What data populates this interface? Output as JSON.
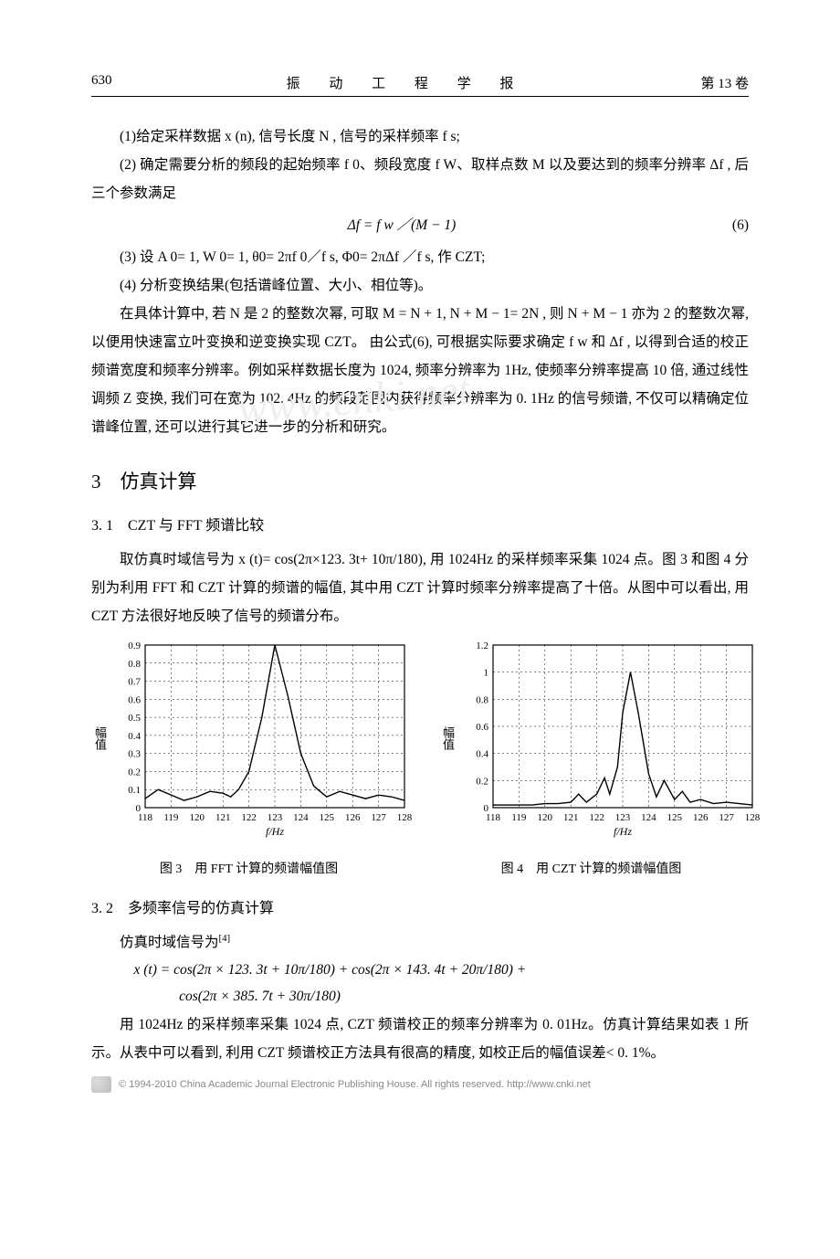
{
  "header": {
    "page_number": "630",
    "journal": "振 动 工 程 学 报",
    "volume": "第 13 卷"
  },
  "para1": "(1)给定采样数据 x (n), 信号长度 N , 信号的采样频率 f s;",
  "para2": "(2) 确定需要分析的频段的起始频率 f 0、频段宽度 f W、取样点数 M 以及要达到的频率分辨率 Δf , 后三个参数满足",
  "eq6": "Δf  =  f w ／(M  −  1)",
  "eq6_num": "(6)",
  "para3": "(3) 设 A 0= 1, W 0= 1, θ0= 2πf 0／f s, Φ0= 2πΔf ／f s, 作 CZT;",
  "para4": "(4) 分析变换结果(包括谱峰位置、大小、相位等)。",
  "para5": "在具体计算中, 若 N 是 2 的整数次幂, 可取 M = N + 1, N + M − 1= 2N , 则 N + M − 1 亦为 2 的整数次幂, 以便用快速富立叶变换和逆变换实现 CZT。 由公式(6), 可根据实际要求确定 f w 和 Δf , 以得到合适的校正频谱宽度和频率分辨率。例如采样数据长度为 1024, 频率分辨率为 1Hz, 使频率分辨率提高 10 倍, 通过线性调频 Z 变换, 我们可在宽为 102. 4Hz 的频段范围内获得频率分辨率为 0. 1Hz 的信号频谱, 不仅可以精确定位谱峰位置, 还可以进行其它进一步的分析和研究。",
  "h2_3": "3　仿真计算",
  "h3_31": "3. 1　CZT 与 FFT 频谱比较",
  "para6": "取仿真时域信号为 x (t)= cos(2π×123. 3t+ 10π/180), 用 1024Hz 的采样频率采集 1024 点。图 3 和图 4 分别为利用 FFT 和 CZT 计算的频谱的幅值, 其中用 CZT 计算时频率分辨率提高了十倍。从图中可以看出, 用 CZT 方法很好地反映了信号的频谱分布。",
  "fig3": {
    "type": "line",
    "ylabel": "幅值",
    "xlabel": "f/Hz",
    "x_ticks": [
      118,
      119,
      120,
      121,
      122,
      123,
      124,
      125,
      126,
      127,
      128
    ],
    "y_ticks": [
      0,
      0.1,
      0.2,
      0.3,
      0.4,
      0.5,
      0.6,
      0.7,
      0.8,
      0.9
    ],
    "xlim": [
      118,
      128
    ],
    "ylim": [
      0,
      0.9
    ],
    "line_color": "#000000",
    "grid_color": "#000000",
    "grid_dash": "2,3",
    "background_color": "#ffffff",
    "title_fontsize": 13,
    "label_fontsize": 12,
    "line_width": 1.4,
    "data": [
      [
        118,
        0.05
      ],
      [
        118.5,
        0.1
      ],
      [
        119,
        0.07
      ],
      [
        119.5,
        0.04
      ],
      [
        120,
        0.06
      ],
      [
        120.5,
        0.09
      ],
      [
        121,
        0.08
      ],
      [
        121.3,
        0.06
      ],
      [
        121.6,
        0.1
      ],
      [
        122,
        0.2
      ],
      [
        122.5,
        0.5
      ],
      [
        123,
        0.9
      ],
      [
        123.5,
        0.62
      ],
      [
        124,
        0.3
      ],
      [
        124.5,
        0.12
      ],
      [
        125,
        0.06
      ],
      [
        125.5,
        0.09
      ],
      [
        126,
        0.07
      ],
      [
        126.5,
        0.05
      ],
      [
        127,
        0.07
      ],
      [
        127.5,
        0.06
      ],
      [
        128,
        0.04
      ]
    ],
    "caption": "图 3　用 FFT 计算的频谱幅值图"
  },
  "fig4": {
    "type": "line",
    "ylabel": "幅值",
    "xlabel": "f/Hz",
    "x_ticks": [
      118,
      119,
      120,
      121,
      122,
      123,
      124,
      125,
      126,
      127,
      128
    ],
    "y_ticks": [
      0,
      0.2,
      0.4,
      0.6,
      0.8,
      1,
      1.2
    ],
    "xlim": [
      118,
      128
    ],
    "ylim": [
      0,
      1.2
    ],
    "line_color": "#000000",
    "grid_color": "#000000",
    "grid_dash": "2,3",
    "background_color": "#ffffff",
    "title_fontsize": 13,
    "label_fontsize": 12,
    "line_width": 1.4,
    "data": [
      [
        118,
        0.02
      ],
      [
        118.5,
        0.02
      ],
      [
        119,
        0.02
      ],
      [
        119.5,
        0.02
      ],
      [
        120,
        0.03
      ],
      [
        120.5,
        0.03
      ],
      [
        121,
        0.04
      ],
      [
        121.3,
        0.1
      ],
      [
        121.6,
        0.04
      ],
      [
        122,
        0.1
      ],
      [
        122.3,
        0.22
      ],
      [
        122.5,
        0.1
      ],
      [
        122.8,
        0.3
      ],
      [
        123.0,
        0.7
      ],
      [
        123.3,
        1.0
      ],
      [
        123.6,
        0.7
      ],
      [
        124,
        0.25
      ],
      [
        124.3,
        0.08
      ],
      [
        124.6,
        0.2
      ],
      [
        125,
        0.06
      ],
      [
        125.3,
        0.12
      ],
      [
        125.6,
        0.04
      ],
      [
        126,
        0.06
      ],
      [
        126.5,
        0.03
      ],
      [
        127,
        0.04
      ],
      [
        127.5,
        0.03
      ],
      [
        128,
        0.02
      ]
    ],
    "caption": "图 4　用 CZT 计算的频谱幅值图"
  },
  "h3_32": "3. 2　多频率信号的仿真计算",
  "para7": "仿真时域信号为",
  "ref4": "[4]",
  "formula_xt_l1": "x (t) = cos(2π × 123. 3t +  10π/180)  +  cos(2π × 143. 4t +  20π/180)  +",
  "formula_xt_l2": "cos(2π × 385. 7t +  30π/180)",
  "para8": "用 1024Hz 的采样频率采集 1024 点, CZT 频谱校正的频率分辨率为 0. 01Hz。仿真计算结果如表 1 所示。从表中可以看到, 利用 CZT 频谱校正方法具有很高的精度, 如校正后的幅值误差< 0. 1%。",
  "watermark": "www.cnki.net",
  "footer": "© 1994-2010 China Academic Journal Electronic Publishing House. All rights reserved.    http://www.cnki.net"
}
